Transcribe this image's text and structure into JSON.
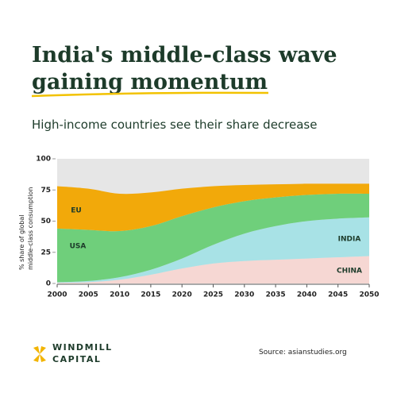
{
  "chart_data": {
    "type": "stacked-area",
    "title": [
      "India's middle-class wave",
      "gaining momentum"
    ],
    "subtitle": "High-income countries see their share decrease",
    "y_label": [
      "% share of global",
      "middle-class consumption"
    ],
    "x": [
      2000,
      2005,
      2010,
      2015,
      2020,
      2025,
      2030,
      2035,
      2040,
      2045,
      2050
    ],
    "xlim": [
      2000,
      2050
    ],
    "xticks": [
      2000,
      2005,
      2010,
      2015,
      2020,
      2025,
      2030,
      2035,
      2040,
      2045,
      2050
    ],
    "ylim": [
      0,
      100
    ],
    "yticks": [
      0,
      25,
      50,
      75,
      100
    ],
    "series": [
      {
        "name": "CHINA",
        "color": "#f6d7d3",
        "values": [
          0.5,
          1,
          3,
          7,
          12,
          16,
          18,
          19,
          20,
          21,
          22
        ]
      },
      {
        "name": "INDIA",
        "color": "#a8e2e6",
        "values": [
          0.5,
          1,
          2,
          4,
          8,
          15,
          22,
          27,
          30,
          31,
          31
        ]
      },
      {
        "name": "USA",
        "color": "#6fcf7b",
        "values": [
          43,
          41,
          37,
          35,
          34,
          30,
          26,
          23,
          21,
          20,
          19
        ]
      },
      {
        "name": "EU",
        "color": "#f2a90a",
        "values": [
          34,
          33,
          30,
          27,
          22,
          17,
          13,
          10.5,
          9,
          8,
          8
        ]
      }
    ],
    "logo": [
      "WINDMILL",
      "CAPITAL"
    ],
    "source": "Source: asianstudies.org"
  }
}
